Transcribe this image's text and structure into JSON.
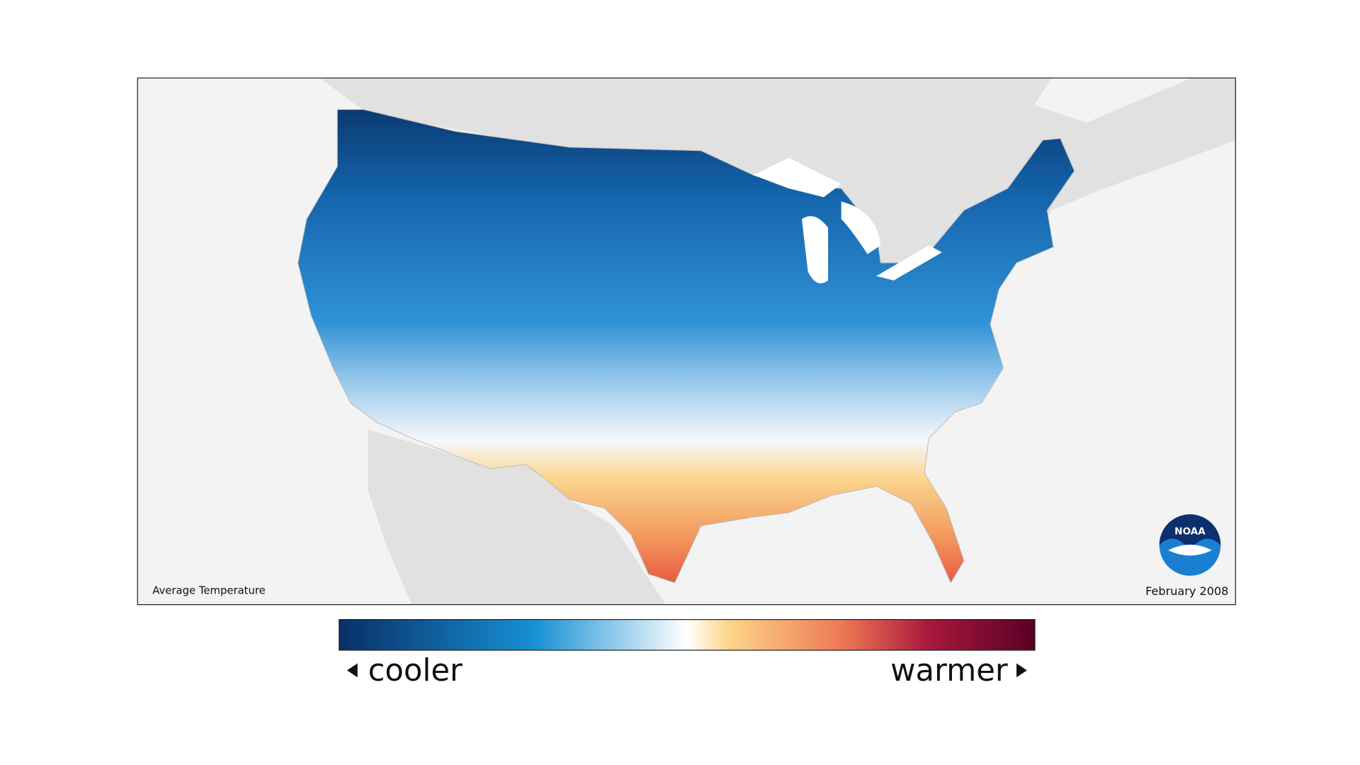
{
  "map": {
    "title": "Average Temperature",
    "date": "February 2008",
    "logo": "NOAA"
  },
  "legend": {
    "low_label": "cooler",
    "high_label": "warmer"
  }
}
